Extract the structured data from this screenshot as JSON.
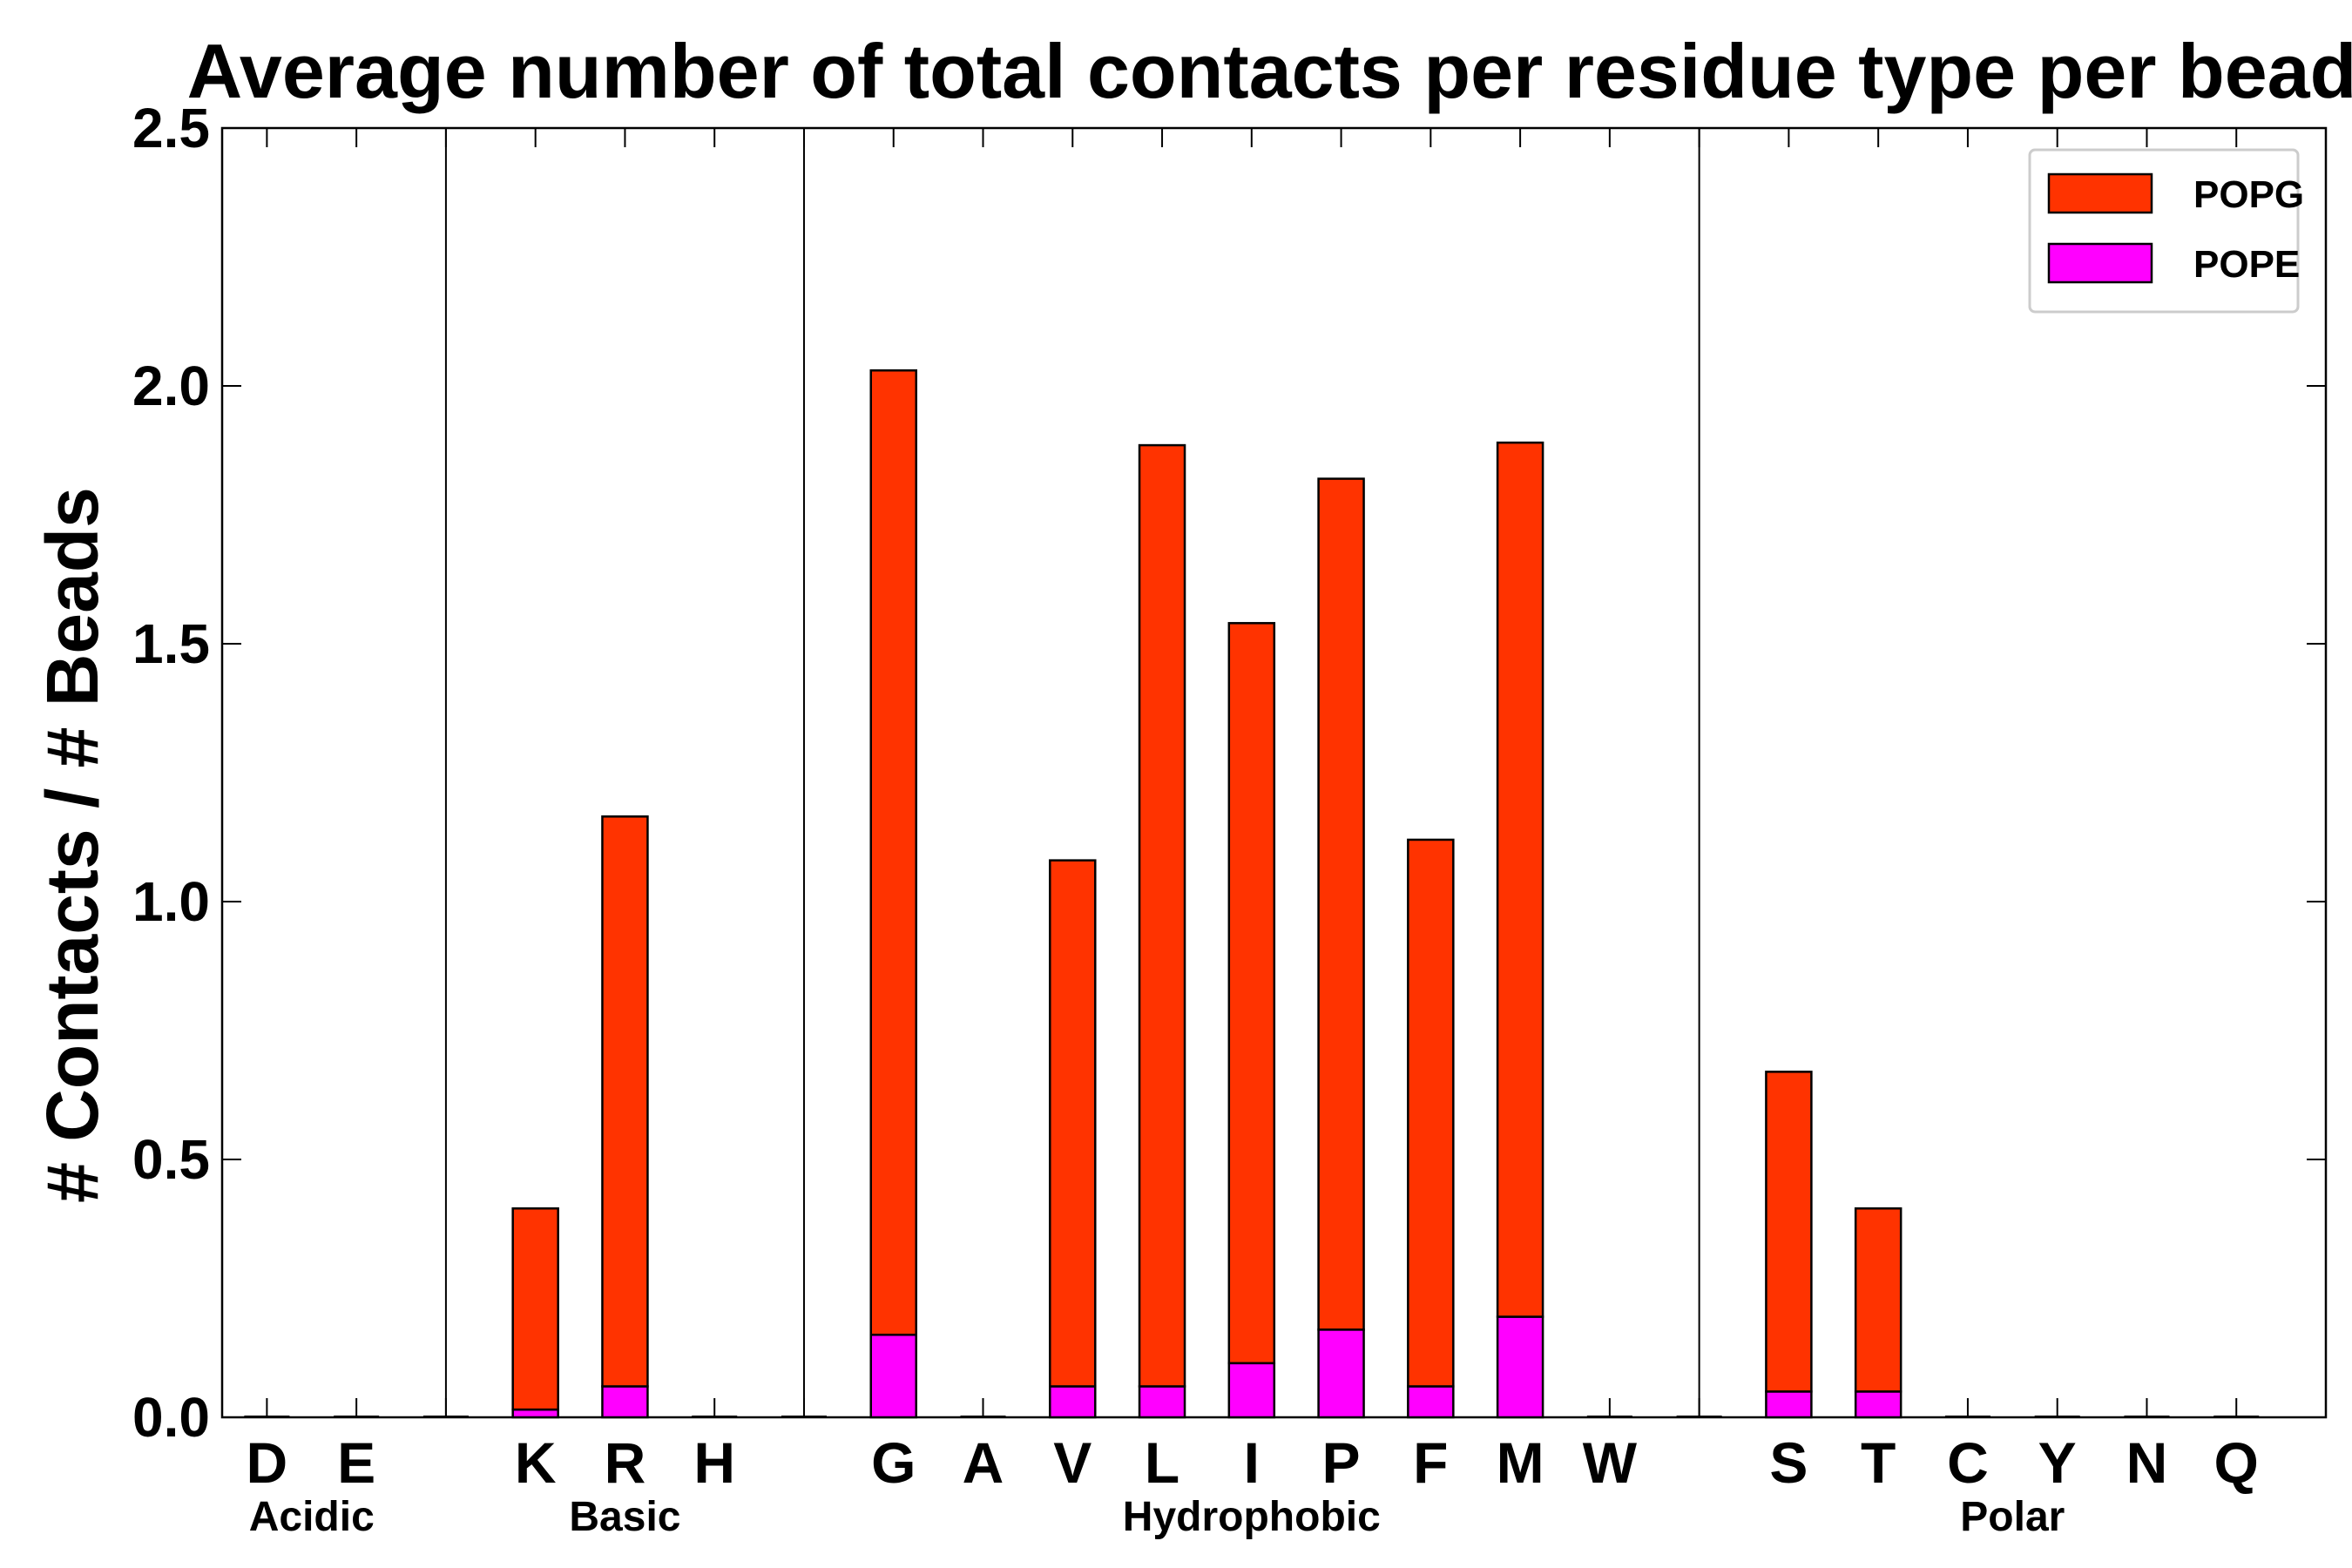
{
  "chart_data": {
    "type": "bar",
    "stacked": true,
    "title": "Average number of total contacts per residue type per bead",
    "xlabel": "",
    "ylabel": "# Contacts / # Beads",
    "ylim": [
      0,
      2.5
    ],
    "yticks": [
      "0.0",
      "0.5",
      "1.0",
      "1.5",
      "2.0",
      "2.5"
    ],
    "categories": [
      "D",
      "E",
      "",
      "K",
      "R",
      "H",
      "",
      "G",
      "A",
      "V",
      "L",
      "I",
      "P",
      "F",
      "M",
      "W",
      "",
      "S",
      "T",
      "C",
      "Y",
      "N",
      "Q"
    ],
    "groups": [
      {
        "label": "Acidic",
        "first": 0,
        "last": 1
      },
      {
        "label": "Basic",
        "first": 3,
        "last": 5
      },
      {
        "label": "Hydrophobic",
        "first": 7,
        "last": 15
      },
      {
        "label": "Polar",
        "first": 17,
        "last": 22
      }
    ],
    "separators_after_index": [
      2,
      6,
      16
    ],
    "series": [
      {
        "name": "POPE",
        "color": "#ff00ff",
        "values": [
          0,
          0,
          0,
          0.015,
          0.06,
          0,
          0,
          0.16,
          0,
          0.06,
          0.06,
          0.105,
          0.17,
          0.06,
          0.195,
          0,
          0,
          0.05,
          0.05,
          0,
          0,
          0,
          0
        ]
      },
      {
        "name": "POPG",
        "color": "#ff3300",
        "values": [
          0,
          0,
          0,
          0.39,
          1.105,
          0,
          0,
          1.87,
          0,
          1.02,
          1.825,
          1.435,
          1.65,
          1.06,
          1.695,
          0,
          0,
          0.62,
          0.355,
          0,
          0,
          0,
          0
        ]
      }
    ],
    "legend": {
      "position": "top-right",
      "entries": [
        "POPG",
        "POPE"
      ]
    },
    "grid": false
  }
}
